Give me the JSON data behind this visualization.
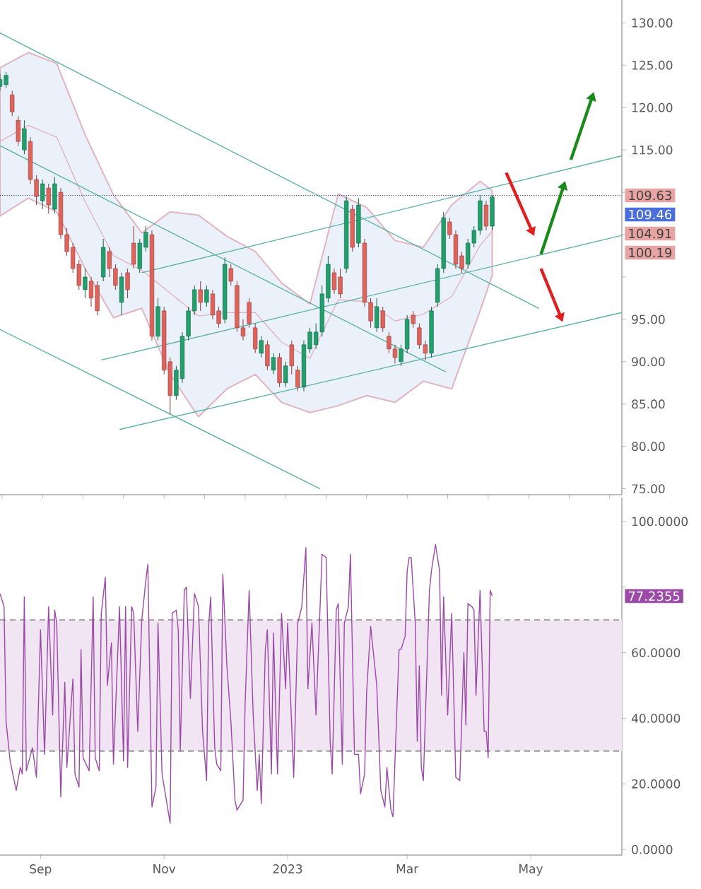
{
  "chart_data": [
    {
      "type": "candlestick",
      "xlim": [
        "2022-08-12",
        "2023-06-15"
      ],
      "ylim": [
        74.3,
        132.7
      ],
      "yticks": [
        {
          "value": 75,
          "label": "75.00"
        },
        {
          "value": 80,
          "label": "80.00"
        },
        {
          "value": 85,
          "label": "85.00"
        },
        {
          "value": 90,
          "label": "90.00"
        },
        {
          "value": 95,
          "label": "95.00"
        },
        {
          "value": 100,
          "label": null
        },
        {
          "value": 105,
          "label": null
        },
        {
          "value": 110,
          "label": null
        },
        {
          "value": 115,
          "label": "115.00"
        },
        {
          "value": 120,
          "label": "120.00"
        },
        {
          "value": 125,
          "label": "125.00"
        },
        {
          "value": 130,
          "label": "130.00"
        }
      ],
      "tick_labels": "y",
      "ref_lines": [
        {
          "axis": "y",
          "value": 109.63,
          "line_style": "dotted",
          "color": "#3b4a8c",
          "label": "109.63"
        }
      ],
      "annotations": [
        "109.46",
        "104.91",
        "100.19"
      ],
      "series": [
        {
          "type": "line",
          "color": "#e2b4bf",
          "x": [
            "2022-08-12",
            "2022-08-26",
            "2022-09-09",
            "2022-09-23",
            "2022-10-07",
            "2022-10-21",
            "2022-11-04",
            "2022-11-18",
            "2022-12-02",
            "2022-12-16",
            "2022-12-29",
            "2023-01-12",
            "2023-01-26",
            "2023-02-09",
            "2023-02-23",
            "2023-03-09",
            "2023-03-23",
            "2023-04-06",
            "2023-04-12"
          ],
          "values": [
            116,
            117.9,
            116.5,
            108.9,
            102.5,
            100.8,
            98.1,
            95.4,
            95.8,
            95.8,
            92.3,
            90.4,
            97.3,
            97.1,
            94.8,
            95.6,
            97.7,
            103.7,
            105.4
          ],
          "upper": [
            124.7,
            126.5,
            125.2,
            116.8,
            109.7,
            105.2,
            107.7,
            107.3,
            104.8,
            103,
            99.3,
            96.8,
            109.8,
            108.2,
            104.3,
            103.5,
            108.5,
            111.3,
            110.2
          ],
          "lower": [
            107.2,
            109.3,
            107.7,
            101,
            95.2,
            96.3,
            88.5,
            83.5,
            86.8,
            88.5,
            85.2,
            84,
            84.8,
            86,
            85.2,
            87.7,
            86.8,
            96,
            100.19
          ]
        },
        {
          "type": "line",
          "color": "#5fb3a3",
          "x": [
            "2022-08-12",
            "2023-05-05"
          ],
          "values": [
            128.8,
            96.3
          ]
        },
        {
          "type": "line",
          "color": "#5fb3a3",
          "x": [
            "2022-08-12",
            "2023-03-20"
          ],
          "values": [
            115.5,
            88.8
          ]
        },
        {
          "type": "line",
          "color": "#5fb3a3",
          "x": [
            "2022-08-12",
            "2023-01-17"
          ],
          "values": [
            93.8,
            75
          ]
        },
        {
          "type": "line",
          "color": "#5fb3a3",
          "x": [
            "2022-10-21",
            "2023-06-15"
          ],
          "values": [
            100.5,
            114.3
          ]
        },
        {
          "type": "line",
          "color": "#5fb3a3",
          "x": [
            "2022-10-01",
            "2023-06-15"
          ],
          "values": [
            90.2,
            104.91
          ]
        },
        {
          "type": "line",
          "color": "#5fb3a3",
          "x": [
            "2022-10-10",
            "2023-06-15"
          ],
          "values": [
            82,
            95.8
          ]
        },
        {
          "type": "candlestick",
          "x": [
            "2022-08-12",
            "2022-08-15",
            "2022-08-18",
            "2022-08-21",
            "2022-08-24",
            "2022-08-27",
            "2022-08-30",
            "2022-09-02",
            "2022-09-05",
            "2022-09-08",
            "2022-09-11",
            "2022-09-14",
            "2022-09-17",
            "2022-09-20",
            "2022-09-23",
            "2022-09-26",
            "2022-09-29",
            "2022-10-02",
            "2022-10-05",
            "2022-10-08",
            "2022-10-11",
            "2022-10-14",
            "2022-10-17",
            "2022-10-20",
            "2022-10-23",
            "2022-10-26",
            "2022-10-29",
            "2022-11-01",
            "2022-11-04",
            "2022-11-07",
            "2022-11-10",
            "2022-11-13",
            "2022-11-16",
            "2022-11-19",
            "2022-11-22",
            "2022-11-25",
            "2022-11-28",
            "2022-12-01",
            "2022-12-04",
            "2022-12-07",
            "2022-12-10",
            "2022-12-13",
            "2022-12-16",
            "2022-12-19",
            "2022-12-22",
            "2022-12-25",
            "2022-12-28",
            "2022-12-31",
            "2023-01-03",
            "2023-01-06",
            "2023-01-09",
            "2023-01-12",
            "2023-01-15",
            "2023-01-18",
            "2023-01-21",
            "2023-01-24",
            "2023-01-27",
            "2023-01-30",
            "2023-02-02",
            "2023-02-05",
            "2023-02-08",
            "2023-02-11",
            "2023-02-14",
            "2023-02-17",
            "2023-02-20",
            "2023-02-23",
            "2023-02-26",
            "2023-03-01",
            "2023-03-04",
            "2023-03-07",
            "2023-03-10",
            "2023-03-13",
            "2023-03-16",
            "2023-03-19",
            "2023-03-22",
            "2023-03-25",
            "2023-03-28",
            "2023-03-31",
            "2023-04-03",
            "2023-04-06",
            "2023-04-09",
            "2023-04-12"
          ],
          "ohlc": [
            [
              122.5,
              124,
              122,
              123.3
            ],
            [
              122.7,
              124.2,
              122.3,
              123.8
            ],
            [
              121.5,
              122,
              119,
              119.5
            ],
            [
              118.5,
              119,
              115.5,
              116
            ],
            [
              115,
              118.5,
              114.5,
              117.5
            ],
            [
              116,
              116.5,
              111,
              111.5
            ],
            [
              111.5,
              112,
              108.5,
              109.5
            ],
            [
              109,
              111.5,
              108,
              111
            ],
            [
              110.5,
              111,
              107.5,
              108.5
            ],
            [
              108,
              111.8,
              107.5,
              111
            ],
            [
              110,
              110.5,
              104.5,
              105
            ],
            [
              105,
              105.8,
              102.5,
              103
            ],
            [
              103.5,
              104,
              100.5,
              101
            ],
            [
              101.5,
              102,
              98.5,
              99
            ],
            [
              98.5,
              101,
              97.5,
              100
            ],
            [
              99.5,
              100,
              96.5,
              97.5
            ],
            [
              99,
              99.5,
              95.5,
              96
            ],
            [
              100,
              104.5,
              99.5,
              103.5
            ],
            [
              103,
              103.5,
              100,
              101
            ],
            [
              101,
              101.5,
              98.5,
              99
            ],
            [
              97,
              100.5,
              95.5,
              100
            ],
            [
              100.5,
              101,
              97.5,
              98.5
            ],
            [
              104,
              106,
              101,
              101.5
            ],
            [
              101,
              104.5,
              100.5,
              104
            ],
            [
              103.5,
              106,
              103,
              105.3
            ],
            [
              105,
              105.5,
              92.5,
              93
            ],
            [
              93,
              97.5,
              92.5,
              96.5
            ],
            [
              96,
              96.5,
              88.5,
              89
            ],
            [
              90,
              90.5,
              83.8,
              86
            ],
            [
              86,
              89.5,
              85.5,
              89
            ],
            [
              88,
              93.5,
              87.5,
              93
            ],
            [
              93,
              96.5,
              92.5,
              96
            ],
            [
              96,
              99,
              95.5,
              98.5
            ],
            [
              98.5,
              99.5,
              96,
              97
            ],
            [
              97,
              99,
              96.5,
              98.5
            ],
            [
              98,
              98.5,
              95,
              95.5
            ],
            [
              96,
              96.5,
              94,
              94.5
            ],
            [
              95,
              102.3,
              94.5,
              101.5
            ],
            [
              101,
              101.5,
              99,
              99.5
            ],
            [
              99,
              99.5,
              93.5,
              94
            ],
            [
              94,
              95,
              92.5,
              93
            ],
            [
              97,
              97.5,
              94,
              94.5
            ],
            [
              94,
              94.5,
              91,
              91.5
            ],
            [
              91,
              93,
              90.5,
              92.5
            ],
            [
              92,
              92.5,
              89,
              89.5
            ],
            [
              89,
              91,
              88.5,
              90.5
            ],
            [
              90.5,
              91,
              87,
              87.5
            ],
            [
              87.5,
              90,
              87,
              89.5
            ],
            [
              92,
              92.5,
              88.5,
              89.5
            ],
            [
              89,
              89.5,
              86.5,
              87
            ],
            [
              87,
              92.5,
              86.5,
              92
            ],
            [
              91.5,
              94,
              91,
              93.5
            ],
            [
              92,
              94.5,
              91.5,
              93.5
            ],
            [
              93.5,
              99,
              93,
              98
            ],
            [
              97.5,
              102.5,
              97,
              101.5
            ],
            [
              100.5,
              101,
              98,
              98.5
            ],
            [
              100,
              101,
              97.5,
              98
            ],
            [
              101,
              109.5,
              100.5,
              109
            ],
            [
              108,
              108.5,
              103,
              103.5
            ],
            [
              104,
              109.3,
              103.5,
              108.5
            ],
            [
              104,
              104.5,
              96.5,
              97
            ],
            [
              97,
              97.5,
              94,
              94.8
            ],
            [
              94,
              97.5,
              93.5,
              96.5
            ],
            [
              96,
              96.5,
              93.5,
              94
            ],
            [
              93,
              93.5,
              91,
              91.5
            ],
            [
              91.5,
              92,
              89.8,
              90.5
            ],
            [
              90,
              92,
              89.5,
              91.5
            ],
            [
              91.5,
              95.5,
              91,
              95
            ],
            [
              95.5,
              96,
              94,
              94.5
            ],
            [
              94,
              94.5,
              91.5,
              92
            ],
            [
              92,
              92.5,
              90.2,
              91
            ],
            [
              91,
              96.5,
              90.5,
              96
            ],
            [
              97,
              101.5,
              96.5,
              101
            ],
            [
              101,
              107.7,
              100.5,
              107
            ],
            [
              106.5,
              107,
              104.5,
              105
            ],
            [
              105,
              105.5,
              101,
              101.5
            ],
            [
              102.5,
              103,
              100.5,
              101
            ],
            [
              101.5,
              104.5,
              101,
              104
            ],
            [
              104,
              106,
              103.5,
              105.5
            ],
            [
              105.5,
              109.7,
              105,
              109
            ],
            [
              108.5,
              109,
              105.5,
              106
            ],
            [
              106,
              109.63,
              105.5,
              109.46
            ]
          ],
          "colors": [
            "#22a06b",
            "#22a06b",
            "#e0645c",
            "#e0645c",
            "#22a06b",
            "#e0645c",
            "#e0645c",
            "#22a06b",
            "#e0645c",
            "#22a06b",
            "#e0645c",
            "#e0645c",
            "#e0645c",
            "#e0645c",
            "#22a06b",
            "#e0645c",
            "#e0645c",
            "#22a06b",
            "#e0645c",
            "#e0645c",
            "#22a06b",
            "#e0645c",
            "#e0645c",
            "#22a06b",
            "#22a06b",
            "#e0645c",
            "#22a06b",
            "#e0645c",
            "#e0645c",
            "#22a06b",
            "#22a06b",
            "#22a06b",
            "#22a06b",
            "#e0645c",
            "#22a06b",
            "#e0645c",
            "#e0645c",
            "#22a06b",
            "#e0645c",
            "#e0645c",
            "#e0645c",
            "#e0645c",
            "#e0645c",
            "#22a06b",
            "#e0645c",
            "#22a06b",
            "#e0645c",
            "#22a06b",
            "#e0645c",
            "#e0645c",
            "#22a06b",
            "#22a06b",
            "#22a06b",
            "#22a06b",
            "#22a06b",
            "#e0645c",
            "#e0645c",
            "#22a06b",
            "#e0645c",
            "#22a06b",
            "#e0645c",
            "#e0645c",
            "#22a06b",
            "#e0645c",
            "#e0645c",
            "#e0645c",
            "#22a06b",
            "#22a06b",
            "#e0645c",
            "#e0645c",
            "#e0645c",
            "#22a06b",
            "#22a06b",
            "#22a06b",
            "#e0645c",
            "#e0645c",
            "#e0645c",
            "#22a06b",
            "#22a06b",
            "#22a06b",
            "#e0645c",
            "#22a06b"
          ]
        }
      ]
    },
    {
      "type": "line",
      "color": "#9b4aa8",
      "xlim": [
        "2022-08-12",
        "2023-06-15"
      ],
      "ylim": [
        -1.7,
        107.3
      ],
      "xticks": [
        {
          "value": "2022-09-01",
          "label": "Sep"
        },
        {
          "value": "2022-11-01",
          "label": "Nov"
        },
        {
          "value": "2023-01-01",
          "label": "2023"
        },
        {
          "value": "2023-03-01",
          "label": "Mar"
        },
        {
          "value": "2023-05-01",
          "label": "May"
        }
      ],
      "yticks": [
        {
          "value": 0,
          "label": "0.0000"
        },
        {
          "value": 20,
          "label": "20.0000"
        },
        {
          "value": 40,
          "label": "40.0000"
        },
        {
          "value": 60,
          "label": "60.0000"
        },
        {
          "value": 80,
          "label": null
        },
        {
          "value": 100,
          "label": "100.0000"
        }
      ],
      "bands": [
        {
          "axis": "y",
          "from": 30,
          "to": 70,
          "color": "#f1e5f3"
        }
      ],
      "ref_lines": [
        {
          "axis": "y",
          "value": 70,
          "line_style": "dashed",
          "color": "#666666"
        },
        {
          "axis": "y",
          "value": 30,
          "line_style": "dashed",
          "color": "#666666"
        }
      ],
      "annotations": [
        "77.2355"
      ],
      "x": [
        "2022-08-12",
        "2022-08-14",
        "2022-08-15",
        "2022-08-17",
        "2022-08-20",
        "2022-08-22",
        "2022-08-23",
        "2022-08-24",
        "2022-08-25",
        "2022-08-28",
        "2022-08-30",
        "2022-09-01",
        "2022-09-03",
        "2022-09-05",
        "2022-09-07",
        "2022-09-08",
        "2022-09-09",
        "2022-09-11",
        "2022-09-13",
        "2022-09-14",
        "2022-09-17",
        "2022-09-18",
        "2022-09-20",
        "2022-09-21",
        "2022-09-22",
        "2022-09-25",
        "2022-09-27",
        "2022-09-28",
        "2022-09-30",
        "2022-10-01",
        "2022-10-03",
        "2022-10-04",
        "2022-10-06",
        "2022-10-07",
        "2022-10-10",
        "2022-10-12",
        "2022-10-13",
        "2022-10-14",
        "2022-10-16",
        "2022-10-17",
        "2022-10-19",
        "2022-10-21",
        "2022-10-23",
        "2022-10-24",
        "2022-10-26",
        "2022-10-28",
        "2022-10-29",
        "2022-10-31",
        "2022-11-04",
        "2022-11-05",
        "2022-11-07",
        "2022-11-08",
        "2022-11-09",
        "2022-11-11",
        "2022-11-12",
        "2022-11-14",
        "2022-11-16",
        "2022-11-18",
        "2022-11-20",
        "2022-11-22",
        "2022-11-23",
        "2022-11-24",
        "2022-11-26",
        "2022-11-27",
        "2022-11-29",
        "2022-11-30",
        "2022-12-02",
        "2022-12-04",
        "2022-12-06",
        "2022-12-07",
        "2022-12-10",
        "2022-12-11",
        "2022-12-13",
        "2022-12-15",
        "2022-12-17",
        "2022-12-18",
        "2022-12-19",
        "2022-12-21",
        "2022-12-22",
        "2022-12-24",
        "2022-12-25",
        "2022-12-27",
        "2022-12-29",
        "2022-12-31",
        "2023-01-01",
        "2023-01-04",
        "2023-01-06",
        "2023-01-08",
        "2023-01-10",
        "2023-01-11",
        "2023-01-13",
        "2023-01-15",
        "2023-01-18",
        "2023-01-20",
        "2023-01-22",
        "2023-01-23",
        "2023-01-25",
        "2023-01-26",
        "2023-01-28",
        "2023-01-29",
        "2023-01-31",
        "2023-02-01",
        "2023-02-03",
        "2023-02-05",
        "2023-02-06",
        "2023-02-08",
        "2023-02-09",
        "2023-02-11",
        "2023-02-14",
        "2023-02-16",
        "2023-02-18",
        "2023-02-19",
        "2023-02-21",
        "2023-02-22",
        "2023-02-25",
        "2023-02-26",
        "2023-02-28",
        "2023-03-01",
        "2023-03-02",
        "2023-03-03",
        "2023-03-05",
        "2023-03-06",
        "2023-03-07",
        "2023-03-08",
        "2023-03-09",
        "2023-03-12",
        "2023-03-13",
        "2023-03-15",
        "2023-03-17",
        "2023-03-18",
        "2023-03-19",
        "2023-03-21",
        "2023-03-23",
        "2023-03-25",
        "2023-03-27",
        "2023-03-29",
        "2023-03-30",
        "2023-03-31",
        "2023-04-02",
        "2023-04-03",
        "2023-04-04",
        "2023-04-06",
        "2023-04-08",
        "2023-04-09",
        "2023-04-10",
        "2023-04-11",
        "2023-04-12"
      ],
      "values": [
        78,
        74,
        39,
        27,
        18,
        25,
        23,
        77,
        24,
        31,
        22,
        67,
        29,
        74,
        41,
        73,
        69,
        16,
        51,
        25,
        52,
        23,
        19,
        61,
        28,
        24,
        77,
        28,
        24,
        72,
        83,
        50,
        63,
        26,
        74,
        27,
        74,
        25,
        74,
        72,
        36,
        70,
        82,
        87,
        13,
        19,
        69,
        23,
        8,
        72,
        73,
        67,
        30,
        79,
        80,
        46,
        78,
        74,
        36,
        21,
        68,
        77,
        31,
        26,
        24,
        84,
        56,
        39,
        15,
        12,
        15,
        44,
        79,
        41,
        18,
        29,
        14,
        61,
        67,
        23,
        66,
        23,
        72,
        49,
        69,
        22,
        69,
        74,
        92,
        49,
        69,
        41,
        90,
        89,
        33,
        23,
        73,
        75,
        26,
        69,
        74,
        90,
        29,
        29,
        17,
        23,
        48,
        68,
        50,
        18,
        13,
        25,
        12,
        10,
        61,
        61,
        65,
        85,
        89,
        89,
        69,
        33,
        56,
        25,
        21,
        79,
        85,
        93,
        85,
        47,
        77,
        41,
        72,
        22,
        21,
        60,
        38,
        75,
        74,
        73,
        47,
        79,
        36,
        36,
        28,
        79,
        77.2355
      ]
    }
  ]
}
